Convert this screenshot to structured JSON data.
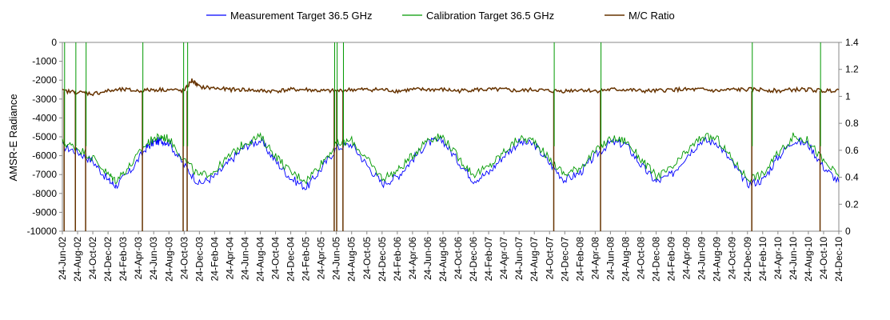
{
  "chart_data": {
    "type": "line",
    "title": "",
    "xlabel": "",
    "ylabel": "AMSR-E Radiance",
    "y2label": "",
    "ylim": [
      -10000,
      0
    ],
    "y2lim": [
      0,
      1.4
    ],
    "yticks": [
      "0",
      "-1000",
      "-2000",
      "-3000",
      "-4000",
      "-5000",
      "-6000",
      "-7000",
      "-8000",
      "-9000",
      "-10000"
    ],
    "y2ticks": [
      "1.4",
      "1.2",
      "1",
      "0.8",
      "0.6",
      "0.4",
      "0.2",
      "0"
    ],
    "grid": false,
    "legend_position": "top",
    "x_start": "2002-06-24",
    "x_end": "2010-12-24",
    "x_tick_labels": [
      "24-Jun-02",
      "24-Aug-02",
      "24-Oct-02",
      "24-Dec-02",
      "24-Feb-03",
      "24-Apr-03",
      "24-Jun-03",
      "24-Aug-03",
      "24-Oct-03",
      "24-Dec-03",
      "24-Feb-04",
      "24-Apr-04",
      "24-Jun-04",
      "24-Aug-04",
      "24-Oct-04",
      "24-Dec-04",
      "24-Feb-05",
      "24-Apr-05",
      "24-Jun-05",
      "24-Aug-05",
      "24-Oct-05",
      "24-Dec-05",
      "24-Feb-06",
      "24-Apr-06",
      "24-Jun-06",
      "24-Aug-06",
      "24-Oct-06",
      "24-Dec-06",
      "24-Feb-07",
      "24-Apr-07",
      "24-Jun-07",
      "24-Aug-07",
      "24-Oct-07",
      "24-Dec-07",
      "24-Feb-08",
      "24-Apr-08",
      "24-Jun-08",
      "24-Aug-08",
      "24-Oct-08",
      "24-Dec-08",
      "24-Feb-09",
      "24-Apr-09",
      "24-Jun-09",
      "24-Aug-09",
      "24-Oct-09",
      "24-Dec-09",
      "24-Feb-10",
      "24-Apr-10",
      "24-Jun-10",
      "24-Aug-10",
      "24-Oct-10",
      "24-Dec-10"
    ],
    "series": [
      {
        "name": "Measurement Target 36.5 GHz",
        "axis": "left",
        "color": "#0000ff",
        "x": [
          "2002-06-24",
          "2002-08-24",
          "2002-10-24",
          "2002-12-24",
          "2003-01-24",
          "2003-03-24",
          "2003-05-24",
          "2003-06-24",
          "2003-07-24",
          "2003-08-24",
          "2003-10-24",
          "2003-12-24",
          "2004-02-24",
          "2004-04-24",
          "2004-06-24",
          "2004-08-24",
          "2004-10-24",
          "2004-12-24",
          "2005-02-24",
          "2005-04-24",
          "2005-06-24",
          "2005-08-24",
          "2005-10-24",
          "2005-12-24",
          "2006-02-24",
          "2006-04-24",
          "2006-06-24",
          "2006-08-24",
          "2006-10-24",
          "2006-12-24",
          "2007-02-24",
          "2007-04-24",
          "2007-06-24",
          "2007-08-24",
          "2007-10-24",
          "2007-12-24",
          "2008-02-24",
          "2008-04-24",
          "2008-06-24",
          "2008-08-24",
          "2008-10-24",
          "2008-12-24",
          "2009-02-24",
          "2009-04-24",
          "2009-06-24",
          "2009-08-24",
          "2009-10-24",
          "2009-12-24",
          "2010-02-24",
          "2010-04-24",
          "2010-06-24",
          "2010-08-24",
          "2010-10-24",
          "2010-12-24"
        ],
        "values": [
          -5500,
          -5800,
          -6300,
          -7300,
          -7600,
          -6800,
          -5600,
          -5300,
          -5200,
          -5300,
          -6500,
          -7500,
          -7100,
          -6300,
          -5500,
          -5200,
          -6300,
          -7200,
          -7700,
          -6700,
          -5600,
          -5400,
          -6500,
          -7500,
          -7100,
          -6200,
          -5300,
          -5200,
          -6300,
          -7300,
          -6900,
          -6000,
          -5300,
          -5400,
          -6400,
          -7300,
          -6900,
          -6000,
          -5300,
          -5400,
          -6500,
          -7400,
          -7000,
          -6000,
          -5200,
          -5300,
          -6400,
          -7500,
          -7300,
          -6100,
          -5200,
          -5400,
          -6600,
          -7400
        ]
      },
      {
        "name": "Calibration Target 36.5 GHz",
        "axis": "left",
        "color": "#009900",
        "x": [
          "2002-06-24",
          "2002-08-24",
          "2002-10-24",
          "2002-12-24",
          "2003-01-24",
          "2003-03-24",
          "2003-05-24",
          "2003-06-24",
          "2003-07-24",
          "2003-08-24",
          "2003-10-24",
          "2003-12-24",
          "2004-02-24",
          "2004-04-24",
          "2004-06-24",
          "2004-08-24",
          "2004-10-24",
          "2004-12-24",
          "2005-02-24",
          "2005-04-24",
          "2005-06-24",
          "2005-08-24",
          "2005-10-24",
          "2005-12-24",
          "2006-02-24",
          "2006-04-24",
          "2006-06-24",
          "2006-08-24",
          "2006-10-24",
          "2006-12-24",
          "2007-02-24",
          "2007-04-24",
          "2007-06-24",
          "2007-08-24",
          "2007-10-24",
          "2007-12-24",
          "2008-02-24",
          "2008-04-24",
          "2008-06-24",
          "2008-08-24",
          "2008-10-24",
          "2008-12-24",
          "2009-02-24",
          "2009-04-24",
          "2009-06-24",
          "2009-08-24",
          "2009-10-24",
          "2009-12-24",
          "2010-02-24",
          "2010-04-24",
          "2010-06-24",
          "2010-08-24",
          "2010-10-24",
          "2010-12-24"
        ],
        "values": [
          -5300,
          -5600,
          -6100,
          -7000,
          -7300,
          -6500,
          -5400,
          -5100,
          -5000,
          -5100,
          -6200,
          -7100,
          -6800,
          -6000,
          -5300,
          -5000,
          -6000,
          -6900,
          -7300,
          -6400,
          -5400,
          -5200,
          -6200,
          -7200,
          -6800,
          -6000,
          -5100,
          -5000,
          -6100,
          -7000,
          -6600,
          -5800,
          -5100,
          -5200,
          -6200,
          -7000,
          -6600,
          -5800,
          -5100,
          -5200,
          -6200,
          -7100,
          -6700,
          -5800,
          -5000,
          -5100,
          -6200,
          -7200,
          -7000,
          -5900,
          -5000,
          -5200,
          -6300,
          -7100
        ]
      },
      {
        "name": "M/C Ratio",
        "axis": "right",
        "color": "#663300",
        "x": [
          "2002-06-24",
          "2002-08-24",
          "2002-10-24",
          "2002-12-24",
          "2003-02-24",
          "2003-04-24",
          "2003-06-24",
          "2003-08-24",
          "2003-10-24",
          "2003-11-24",
          "2003-12-24",
          "2004-02-24",
          "2004-04-24",
          "2004-06-24",
          "2004-08-24",
          "2004-10-24",
          "2004-12-24",
          "2005-02-24",
          "2005-04-24",
          "2005-06-24",
          "2005-08-24",
          "2005-10-24",
          "2005-12-24",
          "2006-02-24",
          "2006-04-24",
          "2006-06-24",
          "2006-08-24",
          "2006-10-24",
          "2006-12-24",
          "2007-02-24",
          "2007-04-24",
          "2007-06-24",
          "2007-08-24",
          "2007-10-24",
          "2007-12-24",
          "2008-02-24",
          "2008-04-24",
          "2008-06-24",
          "2008-08-24",
          "2008-10-24",
          "2008-12-24",
          "2009-02-24",
          "2009-04-24",
          "2009-06-24",
          "2009-08-24",
          "2009-10-24",
          "2009-12-24",
          "2010-02-24",
          "2010-04-24",
          "2010-06-24",
          "2010-08-24",
          "2010-10-24",
          "2010-12-24"
        ],
        "values": [
          1.04,
          1.03,
          1.02,
          1.04,
          1.05,
          1.04,
          1.05,
          1.05,
          1.04,
          1.12,
          1.07,
          1.06,
          1.05,
          1.05,
          1.04,
          1.04,
          1.05,
          1.05,
          1.04,
          1.04,
          1.05,
          1.05,
          1.05,
          1.04,
          1.05,
          1.05,
          1.05,
          1.04,
          1.05,
          1.05,
          1.05,
          1.04,
          1.05,
          1.04,
          1.04,
          1.05,
          1.04,
          1.05,
          1.05,
          1.04,
          1.04,
          1.05,
          1.05,
          1.05,
          1.04,
          1.05,
          1.05,
          1.05,
          1.04,
          1.05,
          1.05,
          1.04,
          1.05
        ]
      }
    ],
    "ratio_dropouts": [
      "2002-07-01",
      "2002-08-15",
      "2002-09-25",
      "2003-05-10",
      "2003-10-20",
      "2003-11-05",
      "2005-06-15",
      "2005-06-25",
      "2005-07-20",
      "2007-11-10",
      "2008-05-15",
      "2010-01-10",
      "2010-10-10"
    ]
  },
  "legend": {
    "items": [
      {
        "label": "Measurement Target 36.5 GHz",
        "color": "#0000ff"
      },
      {
        "label": "Calibration Target 36.5 GHz",
        "color": "#009900"
      },
      {
        "label": "M/C Ratio",
        "color": "#663300"
      }
    ]
  }
}
